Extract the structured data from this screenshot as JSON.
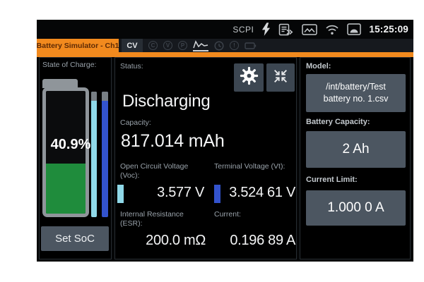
{
  "statusbar": {
    "scpi_label": "SCPI",
    "time": "15:25:09",
    "icons": [
      "power-icon",
      "log-export-icon",
      "screenshot-icon",
      "wifi-icon",
      "display-icon"
    ]
  },
  "tabs": {
    "active_label": "Battery Simulator - Ch1",
    "cv_label": "CV",
    "icon_letters": {
      "c": "C",
      "v": "V",
      "p": "P",
      "alert": "!"
    }
  },
  "soc_panel": {
    "title": "State of Charge:",
    "value": "40.9%",
    "percent": 40.9,
    "button_label": "Set SoC"
  },
  "status_panel": {
    "status_label": "Status:",
    "status_value": "Discharging",
    "capacity_label": "Capacity:",
    "capacity_value": "817.014 mAh",
    "voc_label": "Open Circuit Voltage (Voc):",
    "voc_value": "3.577 V",
    "vt_label": "Terminal Voltage (Vt):",
    "vt_value": "3.524 61 V",
    "esr_label": "Internal Resistance (ESR):",
    "esr_value": "200.0 mΩ",
    "current_label": "Current:",
    "current_value": "0.196 89 A"
  },
  "settings_panel": {
    "model_label": "Model:",
    "model_value": "/int/battery/Test battery no. 1.csv",
    "battery_capacity_label": "Battery Capacity:",
    "battery_capacity_value": "2 Ah",
    "current_limit_label": "Current Limit:",
    "current_limit_value": "1.000 0 A"
  },
  "colors": {
    "accent_orange": "#f28a1e",
    "soc_green": "#1f8c3c",
    "voc_cyan": "#8fd8e8",
    "vt_blue": "#3353cd",
    "button_slate": "#4c5661"
  }
}
